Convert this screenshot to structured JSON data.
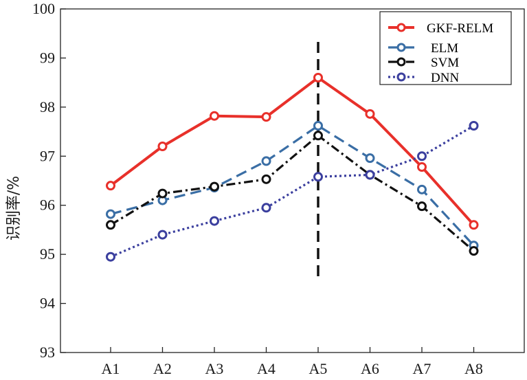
{
  "chart_data": {
    "type": "line",
    "title": "",
    "xlabel": "",
    "ylabel": "识别率/%",
    "categories": [
      "A1",
      "A2",
      "A3",
      "A4",
      "A5",
      "A6",
      "A7",
      "A8"
    ],
    "ylim": [
      93,
      100
    ],
    "yticks": [
      93,
      94,
      95,
      96,
      97,
      98,
      99,
      100
    ],
    "grid": false,
    "legend_position": "top-right",
    "vline_at": "A5",
    "series": [
      {
        "name": "GKF-RELM",
        "color": "#e8302a",
        "style": "solid",
        "values": [
          96.4,
          97.2,
          97.82,
          97.8,
          98.6,
          97.86,
          96.78,
          95.6
        ]
      },
      {
        "name": "ELM",
        "color": "#3a6ea5",
        "style": "dashed",
        "values": [
          95.82,
          96.1,
          96.36,
          96.9,
          97.62,
          96.96,
          96.32,
          95.18
        ]
      },
      {
        "name": "SVM",
        "color": "#111111",
        "style": "dashdot",
        "values": [
          95.6,
          96.24,
          96.38,
          96.53,
          97.42,
          96.62,
          95.98,
          95.07
        ]
      },
      {
        "name": "DNN",
        "color": "#3b3f9e",
        "style": "dotted",
        "values": [
          94.95,
          95.4,
          95.68,
          95.95,
          96.58,
          96.62,
          97.0,
          97.62
        ]
      }
    ]
  }
}
